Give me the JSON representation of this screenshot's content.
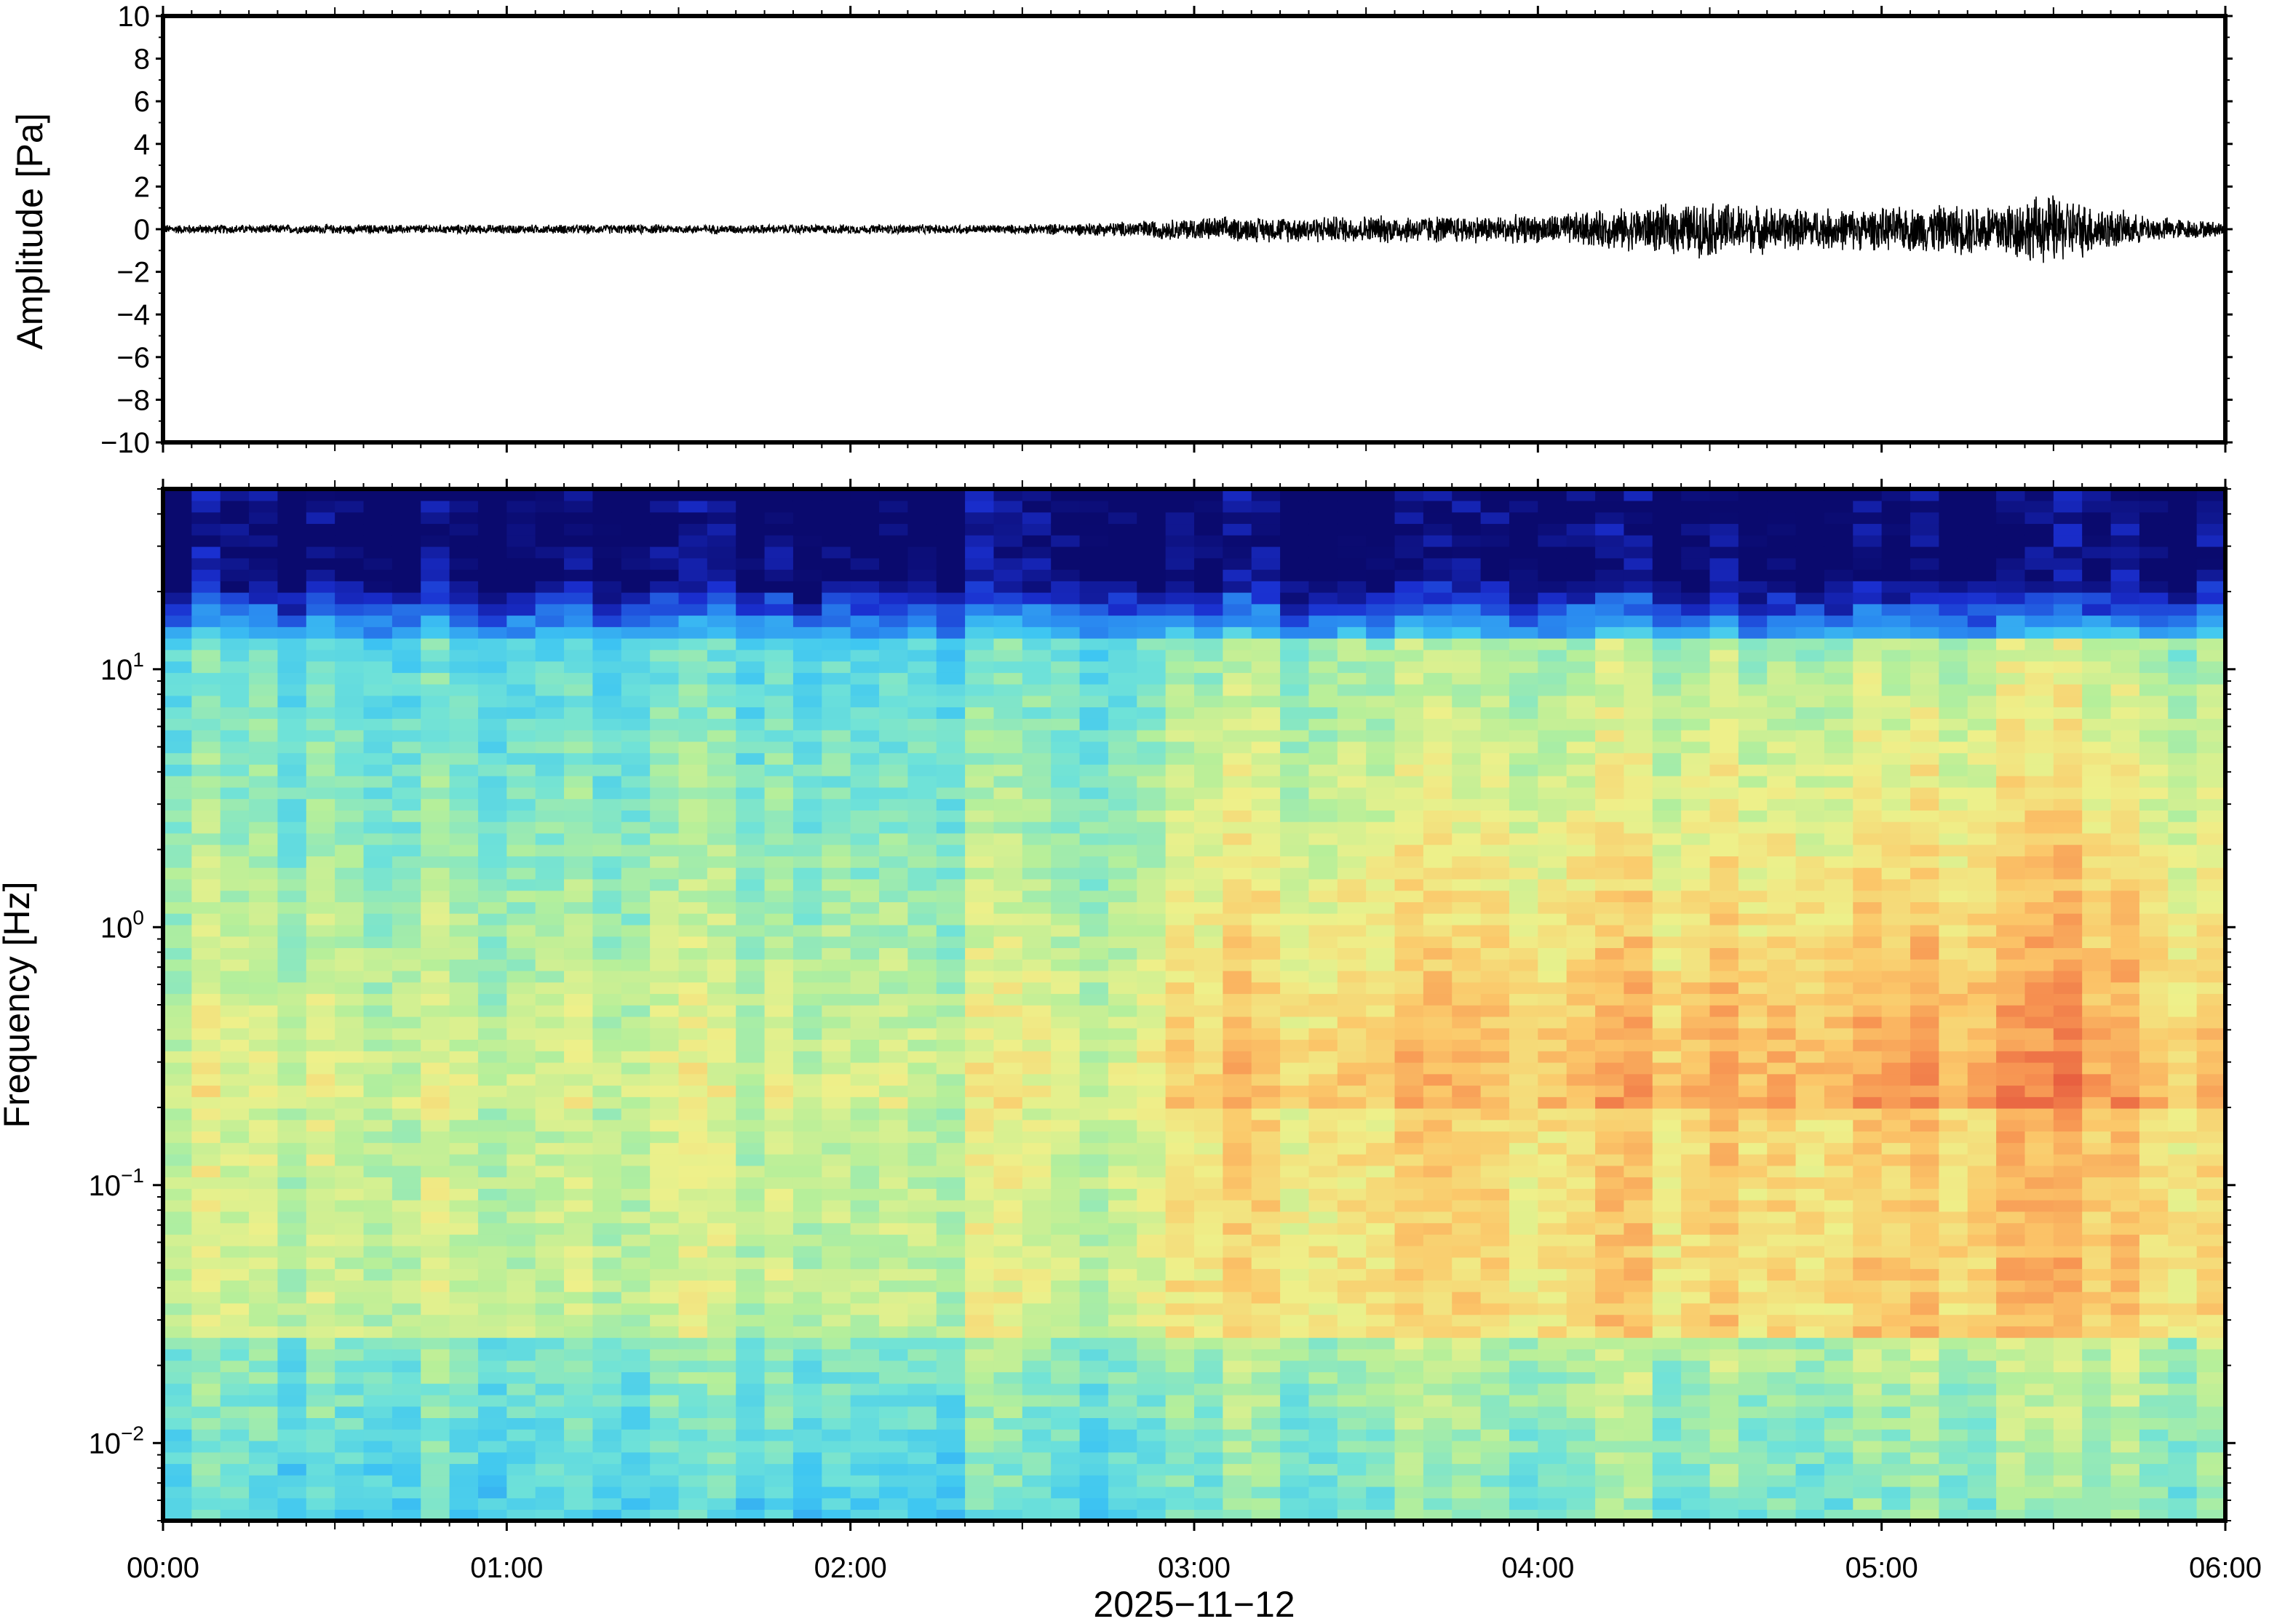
{
  "chart_data": [
    {
      "type": "line",
      "panel": "waveform",
      "ylabel": "Amplitude [Pa]",
      "xlabel": "",
      "ylim": [
        -10,
        10
      ],
      "y_ticks": [
        10,
        8,
        6,
        4,
        2,
        0,
        -2,
        -4,
        -6,
        -8,
        -10
      ],
      "y_tick_labels": [
        "10",
        "8",
        "6",
        "4",
        "2",
        "0",
        "−2",
        "−4",
        "−6",
        "−8",
        "−10"
      ],
      "xlim_hours": [
        0,
        6
      ],
      "series": [
        {
          "x_hours": [
            0.0,
            0.5,
            1.0,
            1.5,
            2.0,
            2.5,
            2.75,
            3.0,
            3.5,
            4.0,
            4.25,
            4.5,
            4.75,
            5.0,
            5.25,
            5.5,
            5.75,
            6.0
          ],
          "envelope_pa": [
            0.2,
            0.2,
            0.2,
            0.2,
            0.2,
            0.2,
            0.3,
            0.5,
            0.6,
            0.6,
            0.9,
            1.2,
            0.9,
            0.9,
            1.1,
            1.5,
            0.6,
            0.3
          ]
        }
      ],
      "line_color": "#000000",
      "grid": false
    },
    {
      "type": "heatmap",
      "panel": "spectrogram",
      "ylabel": "Frequency [Hz]",
      "xlabel": "2025−11−12",
      "y_scale": "log",
      "ylim_hz": [
        0.005,
        50
      ],
      "y_ticks_hz": [
        10,
        1,
        0.1,
        0.01
      ],
      "y_tick_labels": [
        {
          "base": "10",
          "exp": "1"
        },
        {
          "base": "10",
          "exp": "0"
        },
        {
          "base": "10",
          "exp": "−1"
        },
        {
          "base": "10",
          "exp": "−2"
        }
      ],
      "x_ticks": [
        "00:00",
        "01:00",
        "02:00",
        "03:00",
        "04:00",
        "05:00",
        "06:00"
      ],
      "xlim_hours": [
        0,
        6
      ],
      "colormap": [
        "#0a0a6e",
        "#1a2fd0",
        "#2a8af0",
        "#3ec6f2",
        "#6fe2d8",
        "#b5ef9a",
        "#eef08a",
        "#fbc86a",
        "#f79452",
        "#e4543c"
      ],
      "relative_power_levels": {
        "hours": [
          0.0,
          1.0,
          2.0,
          2.75,
          3.0,
          4.0,
          4.5,
          5.0,
          5.5,
          6.0
        ],
        "activity": [
          0.1,
          0.1,
          0.1,
          0.15,
          0.55,
          0.65,
          0.8,
          0.85,
          1.0,
          0.5
        ]
      },
      "grid": false
    }
  ]
}
